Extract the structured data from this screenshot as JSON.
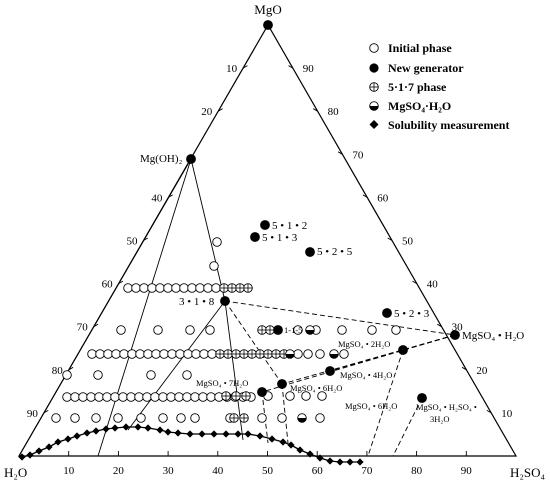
{
  "vertices": {
    "top": {
      "label": "MgO"
    },
    "left": {
      "label": "H₂O"
    },
    "right": {
      "label": "H₂SO₄"
    }
  },
  "tick_values": [
    10,
    20,
    30,
    40,
    50,
    60,
    70,
    80,
    90
  ],
  "left_edge_ticks": [
    "10",
    "20",
    "40",
    "50",
    "60",
    "70",
    "80",
    "90"
  ],
  "left_edge_tick_values": [
    10,
    20,
    40,
    50,
    60,
    70,
    80,
    90
  ],
  "right_edge_ticks": [
    "90",
    "80",
    "70",
    "60",
    "50",
    "40",
    "30",
    "20",
    "10"
  ],
  "right_edge_tick_values": [
    90,
    80,
    70,
    60,
    50,
    40,
    30,
    20,
    10
  ],
  "bottom_edge_ticks": [
    "10",
    "20",
    "30",
    "40",
    "50",
    "60",
    "70",
    "80",
    "90"
  ],
  "bottom_edge_tick_values": [
    10,
    20,
    30,
    40,
    50,
    60,
    70,
    80,
    90
  ],
  "legend": [
    {
      "symbol": "open-circle",
      "label": "Initial phase"
    },
    {
      "symbol": "filled-circle",
      "label": "New generator"
    },
    {
      "symbol": "crossed-circle",
      "label": "5·1·7 phase"
    },
    {
      "symbol": "half-filled-circle",
      "label": "MgSO₄·H₂O"
    },
    {
      "symbol": "filled-diamond",
      "label": "Solubility measurement"
    }
  ],
  "phase_points": [
    {
      "label": "Mg(OH)₂"
    },
    {
      "label": "3 • 1 • 8"
    },
    {
      "label": "5 • 1 • 2"
    },
    {
      "label": "5 • 1 • 3"
    },
    {
      "label": "5 • 2 • 5"
    },
    {
      "label": "5 • 2 • 3"
    },
    {
      "label": "1-1-5"
    },
    {
      "label": "MgSO₄ • H₂O"
    }
  ],
  "hydrate_labels": [
    {
      "label": "MgSO₄ • 2H₂O"
    },
    {
      "label": "MgSO₄ • 4H₂O"
    },
    {
      "label": "MgSO₄ • 7H₂O"
    },
    {
      "label": "MgSO₄ • 6H₂O"
    },
    {
      "label": "MgSO₄ • 6H₂O"
    },
    {
      "label": "MgSO₄ • H₂SO₄ •"
    },
    {
      "label": "3H₂O"
    }
  ]
}
